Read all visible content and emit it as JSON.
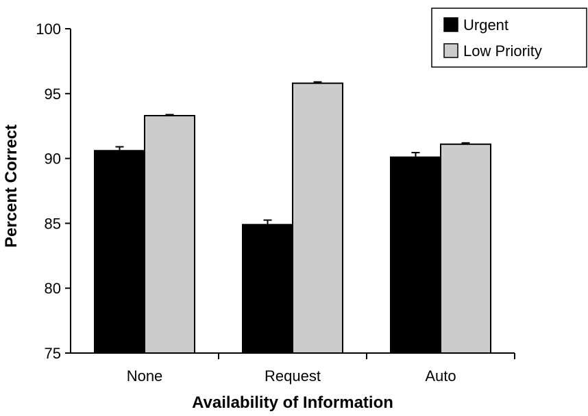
{
  "chart_data": {
    "type": "bar",
    "title": "",
    "xlabel": "Availability of Information",
    "ylabel": "Percent Correct",
    "ylim": [
      75,
      100
    ],
    "yticks": [
      75,
      80,
      85,
      90,
      95,
      100
    ],
    "categories": [
      "None",
      "Request",
      "Auto"
    ],
    "series": [
      {
        "name": "Urgent",
        "color": "#000000",
        "values": [
          90.6,
          84.9,
          90.1
        ],
        "errors": [
          0.3,
          0.35,
          0.35
        ]
      },
      {
        "name": "Low Priority",
        "color": "#cccccc",
        "values": [
          93.3,
          95.8,
          91.1
        ],
        "errors": [
          0.08,
          0.1,
          0.1
        ]
      }
    ],
    "grid": false,
    "legend_position": "top-right"
  }
}
